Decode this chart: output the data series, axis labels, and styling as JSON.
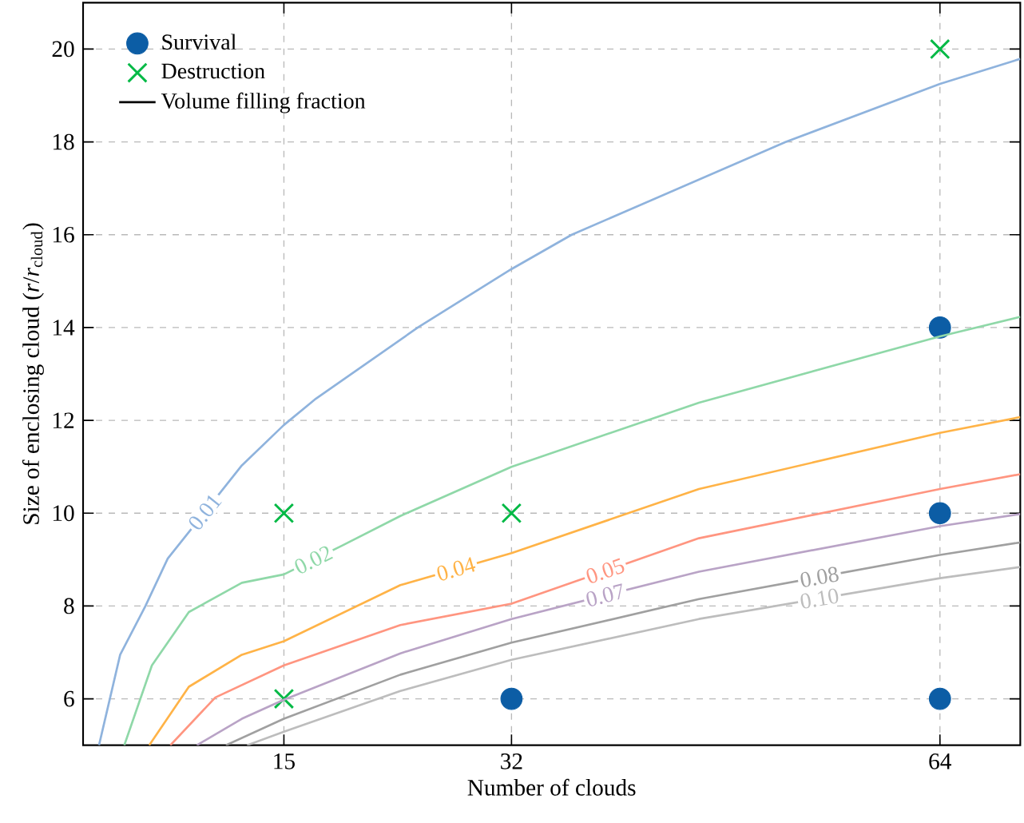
{
  "chart_data": {
    "type": "scatter",
    "xlabel": "Number of clouds",
    "ylabel": "Size of enclosing cloud (*r*/*r*$_{cloud}$)",
    "xlim": [
      0,
      70
    ],
    "ylim": [
      5,
      21
    ],
    "xticks": [
      15,
      32,
      64
    ],
    "yticks": [
      6,
      8,
      10,
      12,
      14,
      16,
      18,
      20
    ],
    "grid": true,
    "legend": "top left",
    "series": [
      {
        "name": "Survival",
        "type": "scatter",
        "marker": "circle",
        "color": "#0c5da5",
        "x": [
          32,
          64,
          64,
          64
        ],
        "values": [
          6,
          6,
          10,
          14
        ]
      },
      {
        "name": "Destruction",
        "type": "scatter",
        "marker": "cross",
        "color": "#00b945",
        "x": [
          15,
          15,
          32,
          64
        ],
        "values": [
          6,
          10,
          10,
          20
        ]
      },
      {
        "name": "Volume filling fraction",
        "type": "line",
        "color": "#000000"
      },
      {
        "name": "0.01",
        "type": "line",
        "color": "#8fb3dd",
        "x": [
          1.19,
          2.77,
          4.66,
          6.32,
          11.86,
          15,
          17.4,
          25,
          32,
          36.5,
          52.5,
          64,
          70
        ],
        "values": [
          5,
          6.95,
          8,
          9.02,
          11.03,
          11.9,
          12.47,
          14,
          15.26,
          16,
          18,
          19.25,
          19.79
        ]
      },
      {
        "name": "0.02",
        "type": "line",
        "color": "#8fd8a8",
        "x": [
          3.08,
          5.14,
          7.9,
          11.86,
          15,
          19.4,
          23.7,
          32,
          46,
          64,
          70
        ],
        "values": [
          5,
          6.72,
          7.87,
          8.5,
          8.68,
          9.31,
          9.94,
          11.0,
          12.38,
          13.81,
          14.23
        ]
      },
      {
        "name": "0.04",
        "type": "line",
        "color": "#ffb347",
        "x": [
          4.94,
          7.9,
          11.86,
          15,
          23.7,
          32,
          46,
          64,
          70
        ],
        "values": [
          5,
          6.26,
          6.95,
          7.24,
          8.45,
          9.14,
          10.52,
          11.73,
          12.07
        ]
      },
      {
        "name": "0.05",
        "type": "line",
        "color": "#ff9580",
        "x": [
          6.52,
          9.88,
          15,
          23.7,
          32,
          46,
          64,
          70
        ],
        "values": [
          5,
          6.03,
          6.72,
          7.59,
          8.05,
          9.46,
          10.52,
          10.84
        ]
      },
      {
        "name": "0.07",
        "type": "line",
        "color": "#b9a3c6",
        "x": [
          8.5,
          11.86,
          15,
          23.7,
          32,
          46,
          64,
          70
        ],
        "values": [
          5,
          5.57,
          5.98,
          6.98,
          7.72,
          8.74,
          9.72,
          9.98
        ]
      },
      {
        "name": "0.08",
        "type": "line",
        "color": "#a0a0a0",
        "x": [
          10.67,
          15,
          23.7,
          32,
          46,
          64,
          70
        ],
        "values": [
          5,
          5.57,
          6.52,
          7.21,
          8.15,
          9.1,
          9.37
        ]
      },
      {
        "name": "0.10",
        "type": "line",
        "color": "#bdbdbd",
        "x": [
          12.25,
          15,
          23.7,
          32,
          46,
          64,
          70
        ],
        "values": [
          5,
          5.29,
          6.17,
          6.84,
          7.72,
          8.6,
          8.84
        ]
      }
    ]
  }
}
